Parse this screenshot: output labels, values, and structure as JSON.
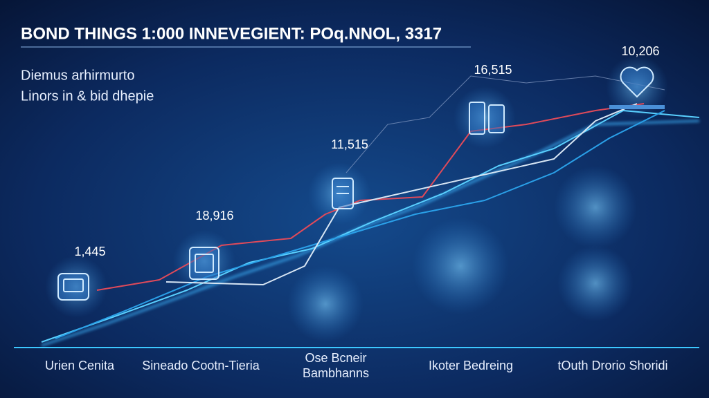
{
  "header": {
    "title": "BOND THINGS 1:000 INNEVEGIENT: POq.NNOL, 3317",
    "subtitle": [
      "Diemus arhirmurto",
      "Linors in & bid dhepie"
    ]
  },
  "milestones": [
    {
      "label": "1,445",
      "category": [
        "Urien Cenita"
      ]
    },
    {
      "label": "18,916",
      "category": [
        "Sineado Cootn-Tieria"
      ]
    },
    {
      "label": "11,515",
      "category": [
        "Ose Bcneir",
        "Bambhanns"
      ]
    },
    {
      "label": "16,515",
      "category": [
        "Ikoter Bedreing"
      ]
    },
    {
      "label": "10,206",
      "category": [
        "tOuth Drorio Shoridi"
      ]
    }
  ]
}
